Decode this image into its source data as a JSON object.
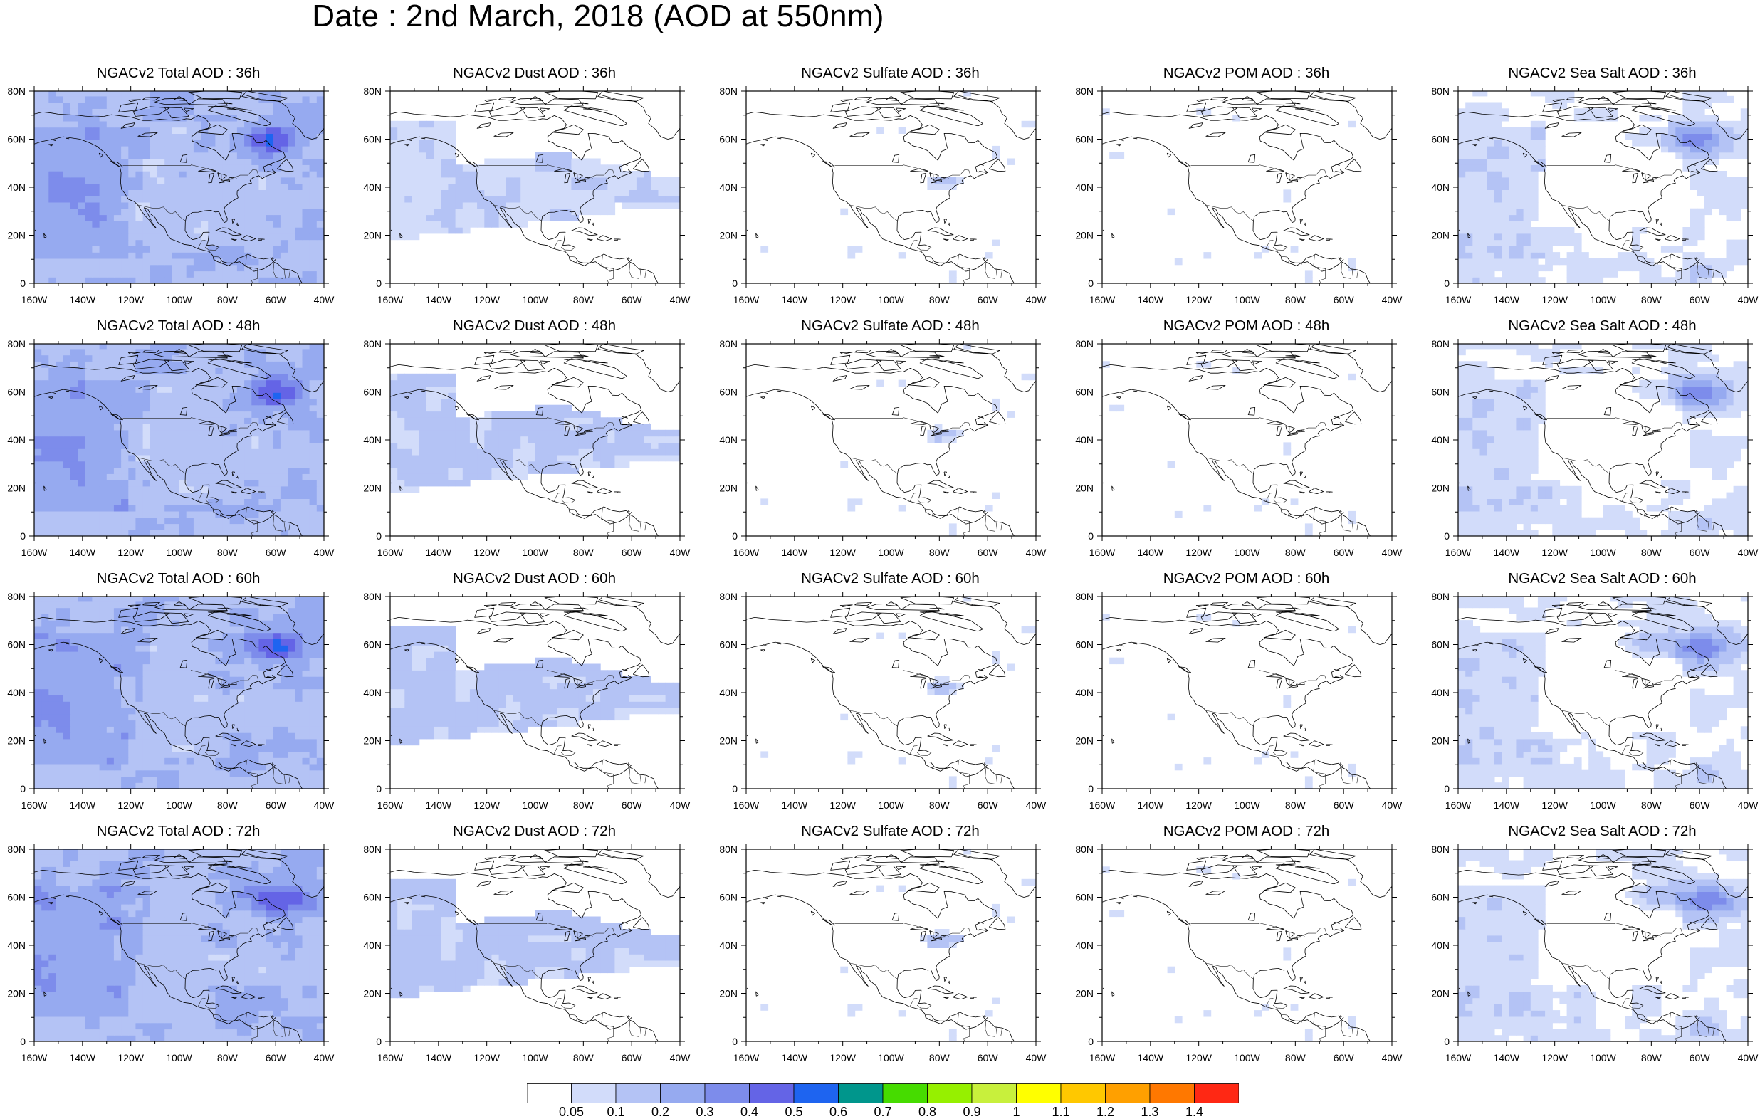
{
  "title": "Date : 2nd March, 2018 (AOD at 550nm)",
  "axes": {
    "lon_labels": [
      "160W",
      "140W",
      "120W",
      "100W",
      "80W",
      "60W",
      "40W"
    ],
    "lat_labels": [
      "0",
      "20N",
      "40N",
      "60N",
      "80N"
    ],
    "lon_range": [
      -160,
      -40
    ],
    "lat_range": [
      0,
      80
    ]
  },
  "panels": [
    [
      {
        "title": "NGACv2 Total AOD : 36h",
        "kind": "total"
      },
      {
        "title": "NGACv2 Dust AOD : 36h",
        "kind": "dust"
      },
      {
        "title": "NGACv2 Sulfate AOD : 36h",
        "kind": "sulfate"
      },
      {
        "title": "NGACv2 POM AOD : 36h",
        "kind": "pom"
      },
      {
        "title": "NGACv2 Sea Salt AOD : 36h",
        "kind": "seasalt"
      }
    ],
    [
      {
        "title": "NGACv2 Total AOD : 48h",
        "kind": "total"
      },
      {
        "title": "NGACv2 Dust AOD : 48h",
        "kind": "dust"
      },
      {
        "title": "NGACv2 Sulfate AOD : 48h",
        "kind": "sulfate"
      },
      {
        "title": "NGACv2 POM AOD : 48h",
        "kind": "pom"
      },
      {
        "title": "NGACv2 Sea Salt AOD : 48h",
        "kind": "seasalt"
      }
    ],
    [
      {
        "title": "NGACv2 Total AOD : 60h",
        "kind": "total"
      },
      {
        "title": "NGACv2 Dust AOD : 60h",
        "kind": "dust"
      },
      {
        "title": "NGACv2 Sulfate AOD : 60h",
        "kind": "sulfate"
      },
      {
        "title": "NGACv2 POM AOD : 60h",
        "kind": "pom"
      },
      {
        "title": "NGACv2 Sea Salt AOD : 60h",
        "kind": "seasalt"
      }
    ],
    [
      {
        "title": "NGACv2 Total AOD : 72h",
        "kind": "total"
      },
      {
        "title": "NGACv2 Dust AOD : 72h",
        "kind": "dust"
      },
      {
        "title": "NGACv2 Sulfate AOD : 72h",
        "kind": "sulfate"
      },
      {
        "title": "NGACv2 POM AOD : 72h",
        "kind": "pom"
      },
      {
        "title": "NGACv2 Sea Salt  AOD : 72h",
        "kind": "seasalt"
      }
    ]
  ],
  "colorbar": {
    "labels": [
      "0.05",
      "0.1",
      "0.2",
      "0.3",
      "0.4",
      "0.5",
      "0.6",
      "0.7",
      "0.8",
      "0.9",
      "1",
      "1.1",
      "1.2",
      "1.3",
      "1.4"
    ],
    "colors": [
      "#ffffff",
      "#d2dcfa",
      "#b4c3f5",
      "#96aaf0",
      "#7d8ceb",
      "#6464e6",
      "#1e64f0",
      "#00968c",
      "#46dc00",
      "#96f000",
      "#c8f03c",
      "#ffff00",
      "#ffc800",
      "#ffa000",
      "#ff7800",
      "#ff2814"
    ]
  }
}
